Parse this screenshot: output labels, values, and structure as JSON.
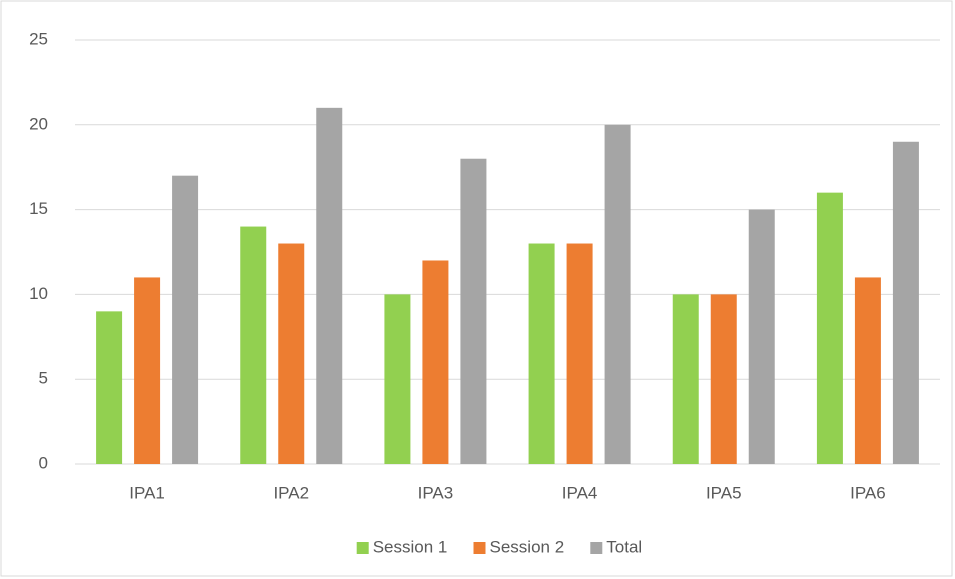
{
  "chart_data": {
    "type": "bar",
    "categories": [
      "IPA1",
      "IPA2",
      "IPA3",
      "IPA4",
      "IPA5",
      "IPA6"
    ],
    "series": [
      {
        "name": "Session 1",
        "color": "#92d050",
        "values": [
          9,
          14,
          10,
          13,
          10,
          16
        ]
      },
      {
        "name": "Session 2",
        "color": "#ed7d31",
        "values": [
          11,
          13,
          12,
          13,
          10,
          11
        ]
      },
      {
        "name": "Total",
        "color": "#a5a5a5",
        "values": [
          17,
          21,
          18,
          20,
          15,
          19
        ]
      }
    ],
    "ylim": [
      0,
      25
    ],
    "yticks": [
      0,
      5,
      10,
      15,
      20,
      25
    ],
    "grid": true,
    "legend": "bottom"
  }
}
